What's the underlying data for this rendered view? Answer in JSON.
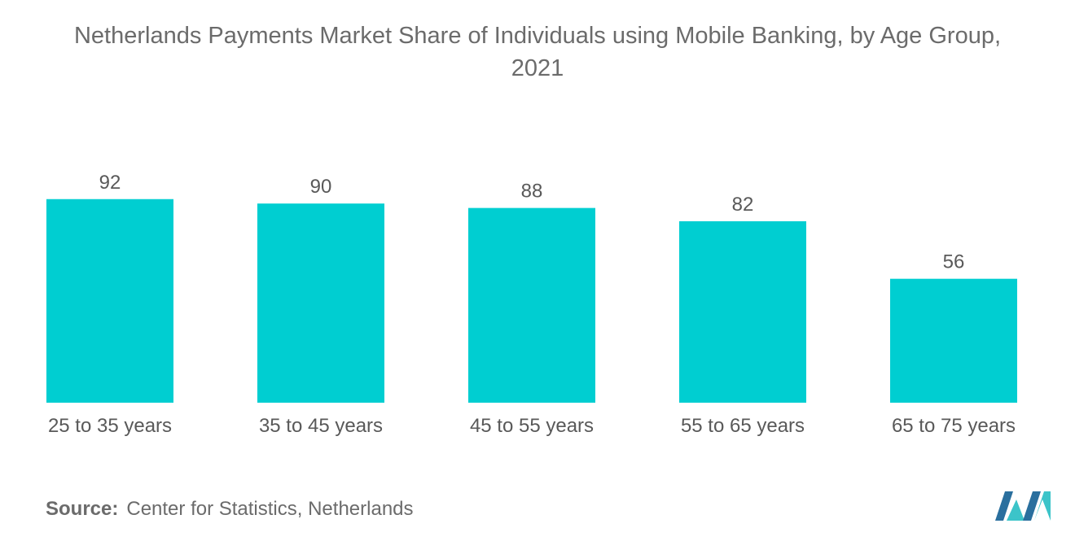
{
  "title": {
    "line1": "Netherlands Payments Market Share of Individuals using Mobile Banking, by Age Group,",
    "line2": "2021"
  },
  "source": {
    "key": "Source:",
    "text": "Center for Statistics, Netherlands"
  },
  "colors": {
    "bar": "#00CED1",
    "logo_dark": "#2a6f9e",
    "logo_light": "#3cc4c9"
  },
  "chart_data": {
    "type": "bar",
    "categories": [
      "25 to 35 years",
      "35 to 45 years",
      "45 to 55 years",
      "55 to 65 years",
      "65 to 75 years"
    ],
    "values": [
      92,
      90,
      88,
      82,
      56
    ],
    "title": "Netherlands Payments Market Share of Individuals using Mobile Banking, by Age Group, 2021",
    "xlabel": "",
    "ylabel": "",
    "ylim": [
      0,
      100
    ],
    "grid": false,
    "legend": "none",
    "data_labels": true
  }
}
